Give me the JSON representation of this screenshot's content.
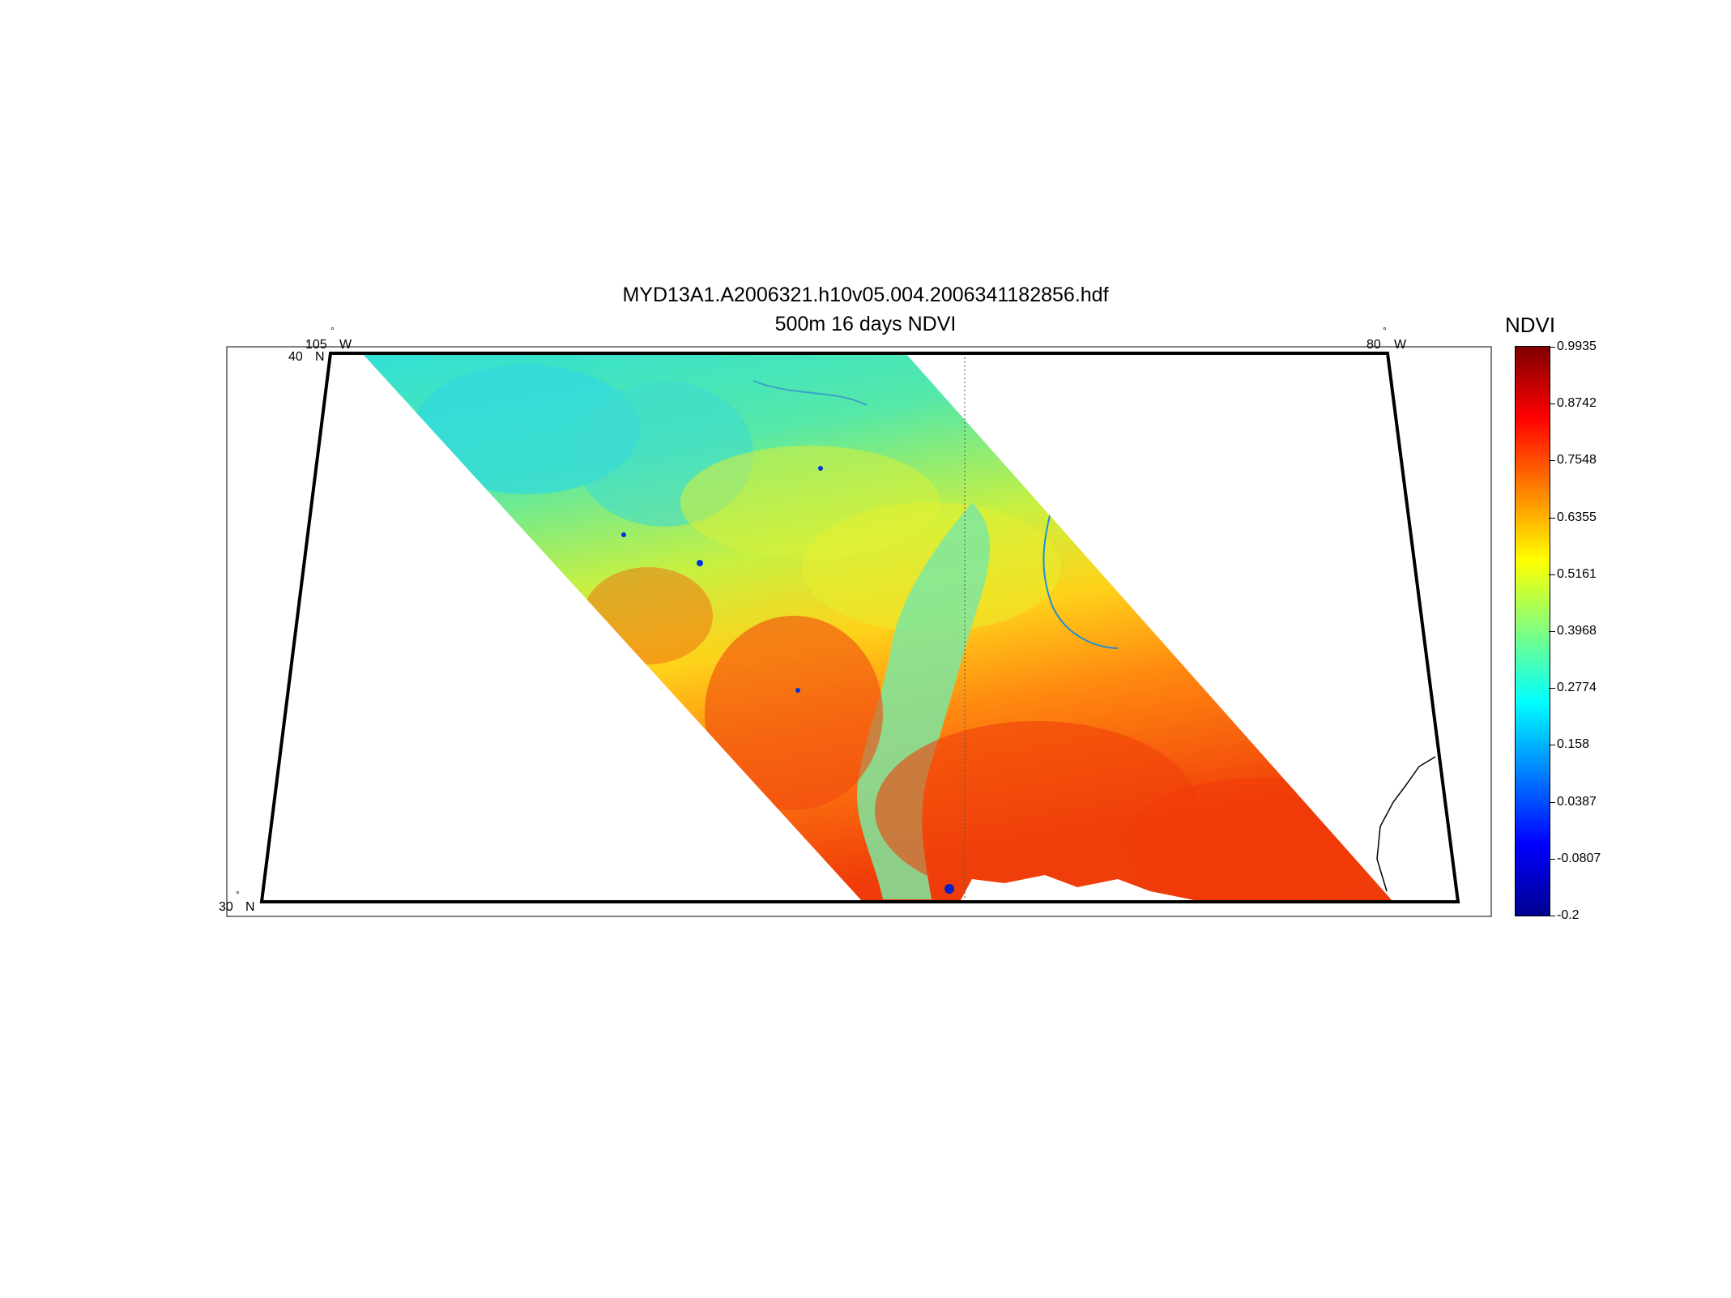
{
  "figure": {
    "title_line1": "MYD13A1.A2006321.h10v05.004.2006341182856.hdf",
    "title_line2": "500m 16 days NDVI"
  },
  "map": {
    "lon_labels": [
      {
        "deg": "105",
        "dir": "W"
      },
      {
        "deg": "80",
        "dir": "W"
      }
    ],
    "lat_labels": [
      {
        "deg": "40",
        "dir": "N"
      },
      {
        "deg": "30",
        "dir": "N"
      }
    ],
    "degree_symbol": "°"
  },
  "colorbar": {
    "label": "NDVI",
    "ticks": [
      "0.9935",
      "0.8742",
      "0.7548",
      "0.6355",
      "0.5161",
      "0.3968",
      "0.2774",
      "0.158",
      "0.0387",
      "-0.0807",
      "-0.2"
    ],
    "min": -0.2,
    "max": 0.9935,
    "colormap": "jet"
  },
  "colors": {
    "jet_low": "#00008f",
    "jet_mid_low": "#00ffff",
    "jet_mid": "#ffff00",
    "jet_high": "#ff0000",
    "jet_top": "#800000"
  }
}
